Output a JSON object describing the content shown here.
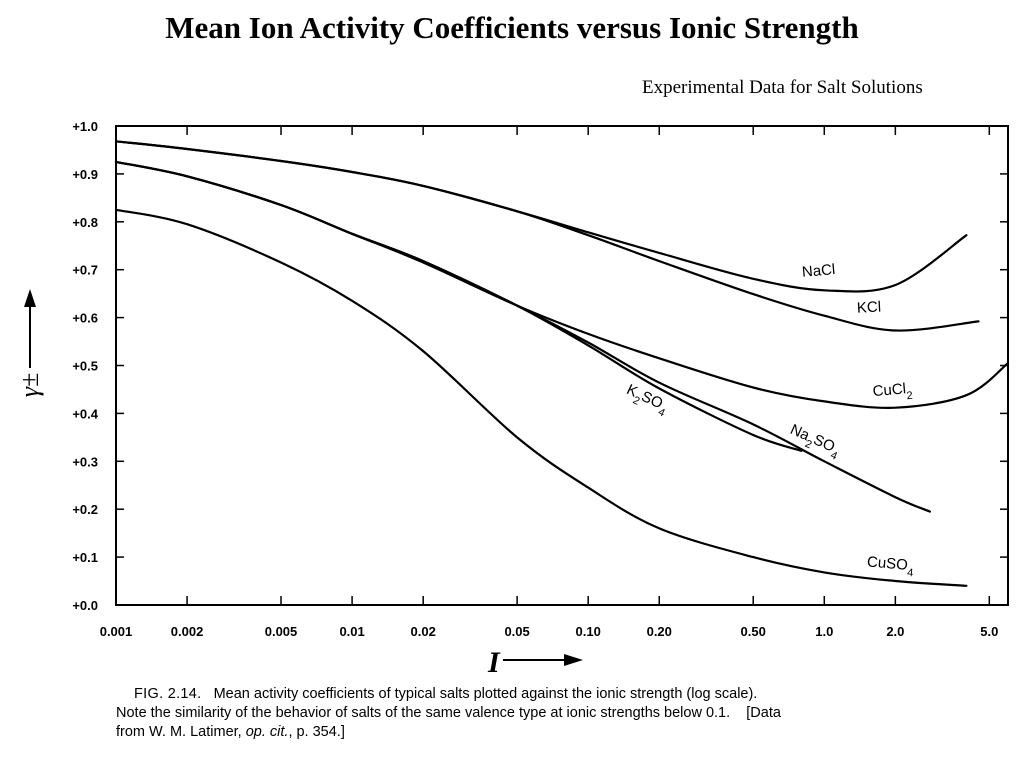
{
  "title": "Mean Ion Activity Coefficients versus Ionic Strength",
  "subtitle": "Experimental Data for Salt Solutions",
  "caption": {
    "fig_label": "FIG. 2.14.",
    "line1_text": "Mean activity coefficients of typical salts plotted against the ionic strength (log scale).",
    "line2": "Note the similarity of the behavior of salts of the same valence type at ionic strengths below 0.1.",
    "line2_tail": "[Data",
    "line3_pre": "from W. M. Latimer, ",
    "line3_italic": "op. cit.",
    "line3_post": ", p. 354.]"
  },
  "chart_data": {
    "type": "line",
    "xlabel": "I",
    "ylabel": "γ±",
    "x_scale": "log",
    "xlim": [
      0.001,
      6.0
    ],
    "ylim": [
      0.0,
      1.0
    ],
    "x_ticks": [
      0.001,
      0.002,
      0.005,
      0.01,
      0.02,
      0.05,
      0.1,
      0.2,
      0.5,
      1.0,
      2.0,
      5.0
    ],
    "x_tick_labels": [
      "0.001",
      "0.002",
      "0.005",
      "0.01",
      "0.02",
      "0.05",
      "0.10",
      "0.20",
      "0.50",
      "1.0",
      "2.0",
      "5.0"
    ],
    "y_ticks": [
      0.0,
      0.1,
      0.2,
      0.3,
      0.4,
      0.5,
      0.6,
      0.7,
      0.8,
      0.9,
      1.0
    ],
    "y_tick_labels": [
      "+0.0",
      "+0.1",
      "+0.2",
      "+0.3",
      "+0.4",
      "+0.5",
      "+0.6",
      "+0.7",
      "+0.8",
      "+0.9",
      "+1.0"
    ],
    "grid": false,
    "series": [
      {
        "name": "NaCl",
        "x": [
          0.001,
          0.002,
          0.005,
          0.01,
          0.02,
          0.05,
          0.1,
          0.2,
          0.5,
          1.0,
          2.0,
          4.0
        ],
        "values": [
          0.968,
          0.952,
          0.927,
          0.904,
          0.875,
          0.822,
          0.778,
          0.735,
          0.681,
          0.657,
          0.668,
          0.772
        ]
      },
      {
        "name": "KCl",
        "x": [
          0.001,
          0.002,
          0.005,
          0.01,
          0.02,
          0.05,
          0.1,
          0.2,
          0.5,
          1.0,
          2.0,
          4.5
        ],
        "values": [
          0.968,
          0.952,
          0.927,
          0.904,
          0.875,
          0.822,
          0.772,
          0.718,
          0.649,
          0.604,
          0.573,
          0.592
        ]
      },
      {
        "name": "CuCl2",
        "x": [
          0.001,
          0.002,
          0.005,
          0.01,
          0.02,
          0.05,
          0.1,
          0.2,
          0.5,
          1.0,
          2.0,
          4.0,
          6.0
        ],
        "values": [
          0.925,
          0.895,
          0.835,
          0.775,
          0.715,
          0.625,
          0.566,
          0.515,
          0.454,
          0.425,
          0.412,
          0.438,
          0.505
        ]
      },
      {
        "name": "K2SO4",
        "x": [
          0.001,
          0.002,
          0.005,
          0.01,
          0.02,
          0.05,
          0.1,
          0.2,
          0.5,
          0.8
        ],
        "values": [
          0.925,
          0.895,
          0.835,
          0.775,
          0.718,
          0.625,
          0.542,
          0.452,
          0.355,
          0.322
        ]
      },
      {
        "name": "Na2SO4",
        "x": [
          0.001,
          0.002,
          0.005,
          0.01,
          0.02,
          0.05,
          0.1,
          0.2,
          0.5,
          1.0,
          2.0,
          2.8
        ],
        "values": [
          0.925,
          0.895,
          0.835,
          0.775,
          0.718,
          0.625,
          0.548,
          0.464,
          0.377,
          0.3,
          0.225,
          0.195
        ]
      },
      {
        "name": "CuSO4",
        "x": [
          0.001,
          0.002,
          0.005,
          0.01,
          0.02,
          0.05,
          0.1,
          0.2,
          0.5,
          1.0,
          2.0,
          4.0
        ],
        "values": [
          0.825,
          0.795,
          0.715,
          0.635,
          0.53,
          0.35,
          0.245,
          0.16,
          0.1,
          0.068,
          0.05,
          0.04
        ]
      }
    ]
  }
}
